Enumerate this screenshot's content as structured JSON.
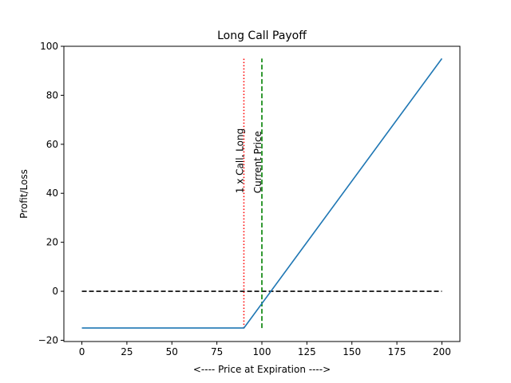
{
  "chart_data": {
    "type": "line",
    "title": "Long Call Payoff",
    "xlabel": "<---- Price at Expiration ---->",
    "ylabel": "Profit/Loss",
    "xlim": [
      -10,
      210
    ],
    "ylim": [
      -20.5,
      100
    ],
    "x_ticks": [
      0,
      25,
      50,
      75,
      100,
      125,
      150,
      175,
      200
    ],
    "y_ticks": [
      -20,
      0,
      20,
      40,
      60,
      80,
      100
    ],
    "grid": false,
    "series": [
      {
        "color": "#1f77b4",
        "style": "solid",
        "x": [
          0,
          90,
          200
        ],
        "y": [
          -15,
          -15,
          95
        ]
      }
    ],
    "zero_line": {
      "x": [
        0,
        200
      ],
      "y": 0,
      "color": "#000000",
      "style": "dashed"
    },
    "vlines": [
      {
        "x": 90,
        "y": [
          -15,
          95
        ],
        "color": "#ff0000",
        "style": "dotted"
      },
      {
        "x": 100,
        "y": [
          -15,
          95
        ],
        "color": "#008000",
        "style": "dashed"
      }
    ],
    "annotations": [
      {
        "text": "1 x Call, Long",
        "x": 90,
        "y": 40,
        "rotation": 90
      },
      {
        "text": "Current Price",
        "x": 100,
        "y": 40,
        "rotation": 90
      }
    ]
  }
}
